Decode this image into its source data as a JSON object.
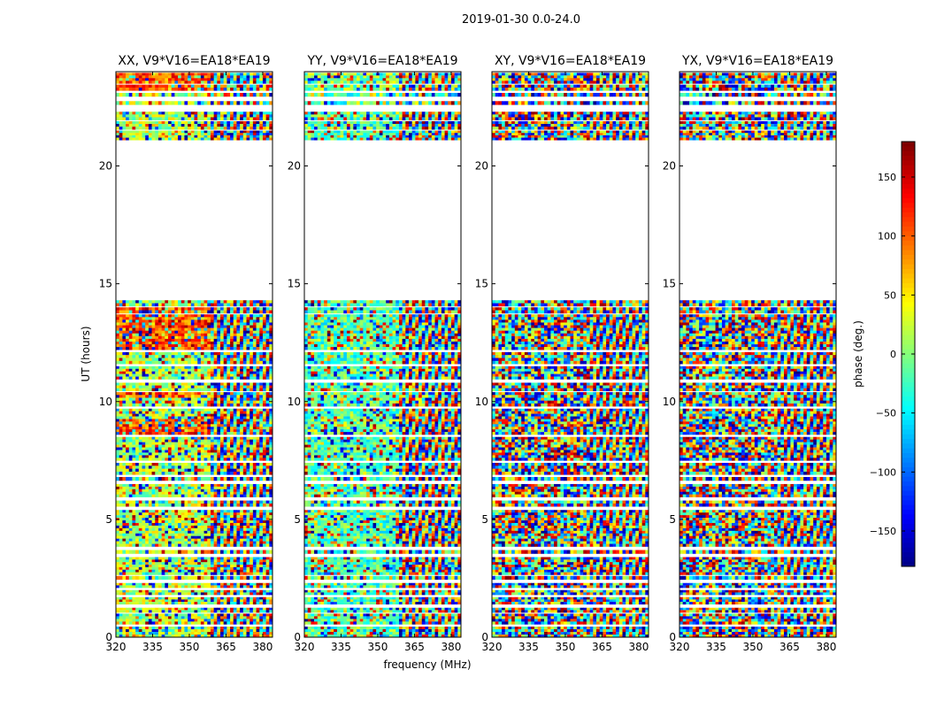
{
  "figure": {
    "suptitle": "2019-01-30 0.0-24.0",
    "xlabel": "frequency (MHz)",
    "ylabel": "UT (hours)"
  },
  "colorbar": {
    "label": "phase (deg.)",
    "range": [
      -180,
      180
    ],
    "ticks": [
      150,
      100,
      50,
      0,
      -50,
      -100,
      -150
    ],
    "tick_labels": [
      "150",
      "100",
      "50",
      "0",
      "−50",
      "−100",
      "−150"
    ],
    "colormap": "jet",
    "colors": [
      "#00007f",
      "#0000ff",
      "#007fff",
      "#00ffff",
      "#7fff7f",
      "#ffff00",
      "#ff7f00",
      "#ff0000",
      "#7f0000"
    ]
  },
  "chart_data": [
    {
      "type": "heatmap",
      "title": "XX, V9*V16=EA18*EA19",
      "x_ticks": [
        320,
        335,
        350,
        365,
        380
      ],
      "x_range": [
        320,
        384
      ],
      "y_ticks": [
        0,
        5,
        10,
        15,
        20
      ],
      "y_range": [
        0,
        24
      ],
      "value": "phase (deg.)"
    },
    {
      "type": "heatmap",
      "title": "YY, V9*V16=EA18*EA19",
      "x_ticks": [
        320,
        335,
        350,
        365,
        380
      ],
      "x_range": [
        320,
        384
      ],
      "y_ticks": [
        0,
        5,
        10,
        15,
        20
      ],
      "y_range": [
        0,
        24
      ],
      "value": "phase (deg.)"
    },
    {
      "type": "heatmap",
      "title": "XY, V9*V16=EA18*EA19",
      "x_ticks": [
        320,
        335,
        350,
        365,
        380
      ],
      "x_range": [
        320,
        384
      ],
      "y_ticks": [
        0,
        5,
        10,
        15,
        20
      ],
      "y_range": [
        0,
        24
      ],
      "value": "phase (deg.)"
    },
    {
      "type": "heatmap",
      "title": "YX, V9*V16=EA18*EA19",
      "x_ticks": [
        320,
        335,
        350,
        365,
        380
      ],
      "x_range": [
        320,
        384
      ],
      "y_ticks": [
        0,
        5,
        10,
        15,
        20
      ],
      "y_range": [
        0,
        24
      ],
      "value": "phase (deg.)"
    }
  ]
}
